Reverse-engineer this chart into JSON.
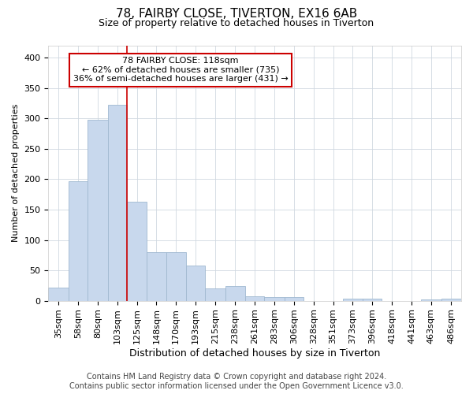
{
  "title": "78, FAIRBY CLOSE, TIVERTON, EX16 6AB",
  "subtitle": "Size of property relative to detached houses in Tiverton",
  "xlabel": "Distribution of detached houses by size in Tiverton",
  "ylabel": "Number of detached properties",
  "red_line_x": 125,
  "annotation_line1": "78 FAIRBY CLOSE: 118sqm",
  "annotation_line2": "← 62% of detached houses are smaller (735)",
  "annotation_line3": "36% of semi-detached houses are larger (431) →",
  "footer_line1": "Contains HM Land Registry data © Crown copyright and database right 2024.",
  "footer_line2": "Contains public sector information licensed under the Open Government Licence v3.0.",
  "bar_color": "#c8d8ed",
  "bar_edge_color": "#a0b8d0",
  "red_line_color": "#cc0000",
  "background_color": "#ffffff",
  "annotation_box_color": "#ffffff",
  "annotation_box_edge": "#cc0000",
  "grid_color": "#d0d8e0",
  "categories": [
    "35sqm",
    "58sqm",
    "80sqm",
    "103sqm",
    "125sqm",
    "148sqm",
    "170sqm",
    "193sqm",
    "215sqm",
    "238sqm",
    "261sqm",
    "283sqm",
    "306sqm",
    "328sqm",
    "351sqm",
    "373sqm",
    "396sqm",
    "418sqm",
    "441sqm",
    "463sqm",
    "486sqm"
  ],
  "bin_edges": [
    35,
    58,
    80,
    103,
    125,
    148,
    170,
    193,
    215,
    238,
    261,
    283,
    306,
    328,
    351,
    373,
    396,
    418,
    441,
    463,
    486
  ],
  "values": [
    22,
    197,
    297,
    322,
    163,
    80,
    80,
    58,
    21,
    24,
    8,
    6,
    6,
    0,
    0,
    4,
    4,
    0,
    0,
    2,
    3
  ],
  "ylim": [
    0,
    420
  ],
  "yticks": [
    0,
    50,
    100,
    150,
    200,
    250,
    300,
    350,
    400
  ],
  "title_fontsize": 11,
  "subtitle_fontsize": 9,
  "xlabel_fontsize": 9,
  "ylabel_fontsize": 8,
  "tick_fontsize": 8,
  "footer_fontsize": 7,
  "annotation_fontsize": 8
}
